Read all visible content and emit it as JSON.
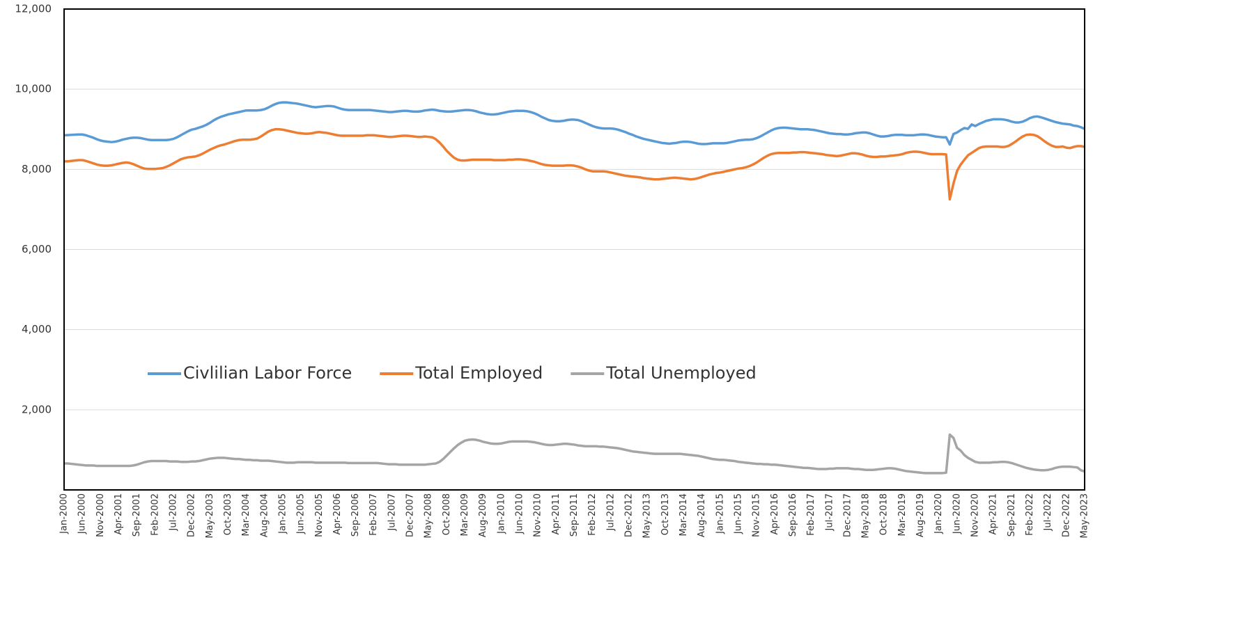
{
  "chart_data": {
    "type": "line",
    "categories": [
      "Jan-2000",
      null,
      null,
      null,
      null,
      "Jun-2000",
      null,
      null,
      null,
      null,
      "Nov-2000",
      null,
      null,
      null,
      null,
      "Apr-2001",
      null,
      null,
      null,
      null,
      "Sep-2001",
      null,
      null,
      null,
      null,
      "Feb-2002",
      null,
      null,
      null,
      null,
      "Jul-2002",
      null,
      null,
      null,
      null,
      "Dec-2002",
      null,
      null,
      null,
      null,
      "May-2003",
      null,
      null,
      null,
      null,
      "Oct-2003",
      null,
      null,
      null,
      null,
      "Mar-2004",
      null,
      null,
      null,
      null,
      "Aug-2004",
      null,
      null,
      null,
      null,
      "Jan-2005",
      null,
      null,
      null,
      null,
      "Jun-2005",
      null,
      null,
      null,
      null,
      "Nov-2005",
      null,
      null,
      null,
      null,
      "Apr-2006",
      null,
      null,
      null,
      null,
      "Sep-2006",
      null,
      null,
      null,
      null,
      "Feb-2007",
      null,
      null,
      null,
      null,
      "Jul-2007",
      null,
      null,
      null,
      null,
      "Dec-2007",
      null,
      null,
      null,
      null,
      "May-2008",
      null,
      null,
      null,
      null,
      "Oct-2008",
      null,
      null,
      null,
      null,
      "Mar-2009",
      null,
      null,
      null,
      null,
      "Aug-2009",
      null,
      null,
      null,
      null,
      "Jan-2010",
      null,
      null,
      null,
      null,
      "Jun-2010",
      null,
      null,
      null,
      null,
      "Nov-2010",
      null,
      null,
      null,
      null,
      "Apr-2011",
      null,
      null,
      null,
      null,
      "Sep-2011",
      null,
      null,
      null,
      null,
      "Feb-2012",
      null,
      null,
      null,
      null,
      "Jul-2012",
      null,
      null,
      null,
      null,
      "Dec-2012",
      null,
      null,
      null,
      null,
      "May-2013",
      null,
      null,
      null,
      null,
      "Oct-2013",
      null,
      null,
      null,
      null,
      "Mar-2014",
      null,
      null,
      null,
      null,
      "Aug-2014",
      null,
      null,
      null,
      null,
      "Jan-2015",
      null,
      null,
      null,
      null,
      "Jun-2015",
      null,
      null,
      null,
      null,
      "Nov-2015",
      null,
      null,
      null,
      null,
      "Apr-2016",
      null,
      null,
      null,
      null,
      "Sep-2016",
      null,
      null,
      null,
      null,
      "Feb-2017",
      null,
      null,
      null,
      null,
      "Jul-2017",
      null,
      null,
      null,
      null,
      "Dec-2017",
      null,
      null,
      null,
      null,
      "May-2018",
      null,
      null,
      null,
      null,
      "Oct-2018",
      null,
      null,
      null,
      null,
      "Mar-2019",
      null,
      null,
      null,
      null,
      "Aug-2019",
      null,
      null,
      null,
      null,
      "Jan-2020",
      null,
      null,
      null,
      null,
      "Jun-2020",
      null,
      null,
      null,
      null,
      "Nov-2020",
      null,
      null,
      null,
      null,
      "Apr-2021",
      null,
      null,
      null,
      null,
      "Sep-2021",
      null,
      null,
      null,
      null,
      "Feb-2022",
      null,
      null,
      null,
      null,
      "Jul-2022",
      null,
      null,
      null,
      null,
      "Dec-2022",
      null,
      null,
      null,
      null,
      "May-2023"
    ],
    "series": [
      {
        "name": "Civlilian Labor Force",
        "color": "#5b9bd5",
        "values": [
          8850,
          8855,
          8860,
          8865,
          8870,
          8870,
          8850,
          8820,
          8790,
          8750,
          8720,
          8700,
          8690,
          8680,
          8690,
          8710,
          8740,
          8760,
          8780,
          8790,
          8790,
          8780,
          8760,
          8740,
          8730,
          8730,
          8730,
          8730,
          8730,
          8740,
          8760,
          8800,
          8850,
          8900,
          8950,
          8990,
          9010,
          9040,
          9070,
          9110,
          9160,
          9220,
          9270,
          9310,
          9340,
          9370,
          9390,
          9410,
          9430,
          9450,
          9470,
          9470,
          9470,
          9470,
          9480,
          9500,
          9540,
          9590,
          9630,
          9660,
          9670,
          9670,
          9660,
          9650,
          9640,
          9620,
          9600,
          9580,
          9560,
          9550,
          9560,
          9570,
          9580,
          9580,
          9570,
          9540,
          9510,
          9490,
          9480,
          9480,
          9480,
          9480,
          9480,
          9480,
          9480,
          9470,
          9460,
          9450,
          9440,
          9430,
          9430,
          9440,
          9450,
          9460,
          9460,
          9450,
          9440,
          9440,
          9450,
          9470,
          9480,
          9490,
          9480,
          9460,
          9450,
          9440,
          9440,
          9450,
          9460,
          9470,
          9480,
          9480,
          9470,
          9450,
          9420,
          9400,
          9380,
          9370,
          9370,
          9380,
          9400,
          9420,
          9440,
          9450,
          9460,
          9460,
          9460,
          9450,
          9430,
          9400,
          9360,
          9310,
          9270,
          9230,
          9210,
          9200,
          9200,
          9210,
          9230,
          9240,
          9240,
          9230,
          9200,
          9160,
          9120,
          9080,
          9050,
          9030,
          9020,
          9020,
          9020,
          9010,
          8990,
          8960,
          8930,
          8890,
          8860,
          8820,
          8790,
          8760,
          8740,
          8720,
          8700,
          8680,
          8660,
          8650,
          8640,
          8650,
          8660,
          8680,
          8690,
          8690,
          8680,
          8660,
          8640,
          8630,
          8630,
          8640,
          8650,
          8650,
          8650,
          8650,
          8660,
          8680,
          8700,
          8720,
          8730,
          8740,
          8740,
          8750,
          8780,
          8820,
          8870,
          8920,
          8970,
          9010,
          9030,
          9040,
          9040,
          9030,
          9020,
          9010,
          9000,
          9000,
          9000,
          8990,
          8980,
          8960,
          8940,
          8920,
          8900,
          8890,
          8880,
          8880,
          8870,
          8870,
          8880,
          8900,
          8910,
          8920,
          8920,
          8900,
          8870,
          8840,
          8820,
          8820,
          8830,
          8850,
          8860,
          8860,
          8860,
          8850,
          8850,
          8850,
          8860,
          8870,
          8870,
          8860,
          8840,
          8820,
          8810,
          8800,
          8800,
          8620,
          8880,
          8920,
          8980,
          9030,
          9010,
          9120,
          9080,
          9130,
          9170,
          9210,
          9230,
          9250,
          9250,
          9250,
          9240,
          9220,
          9190,
          9170,
          9170,
          9190,
          9230,
          9280,
          9310,
          9320,
          9300,
          9270,
          9240,
          9210,
          9180,
          9160,
          9140,
          9130,
          9120,
          9090,
          9080,
          9050,
          9010
        ]
      },
      {
        "name": "Total Employed",
        "color": "#ed7d31",
        "values": [
          8200,
          8200,
          8210,
          8220,
          8230,
          8230,
          8210,
          8180,
          8150,
          8120,
          8100,
          8090,
          8090,
          8100,
          8120,
          8140,
          8160,
          8170,
          8160,
          8130,
          8090,
          8050,
          8020,
          8010,
          8010,
          8010,
          8020,
          8030,
          8060,
          8100,
          8150,
          8200,
          8250,
          8280,
          8300,
          8310,
          8320,
          8350,
          8390,
          8440,
          8490,
          8530,
          8570,
          8600,
          8620,
          8650,
          8680,
          8710,
          8730,
          8740,
          8740,
          8740,
          8750,
          8770,
          8820,
          8880,
          8940,
          8980,
          9000,
          9000,
          8990,
          8970,
          8950,
          8930,
          8910,
          8900,
          8890,
          8890,
          8900,
          8920,
          8930,
          8920,
          8910,
          8890,
          8870,
          8850,
          8840,
          8840,
          8840,
          8840,
          8840,
          8840,
          8840,
          8850,
          8850,
          8850,
          8840,
          8830,
          8820,
          8810,
          8810,
          8820,
          8830,
          8840,
          8840,
          8830,
          8820,
          8810,
          8810,
          8820,
          8810,
          8800,
          8750,
          8670,
          8570,
          8460,
          8370,
          8290,
          8240,
          8220,
          8220,
          8230,
          8240,
          8240,
          8240,
          8240,
          8240,
          8240,
          8230,
          8230,
          8230,
          8230,
          8240,
          8240,
          8250,
          8250,
          8240,
          8230,
          8210,
          8190,
          8160,
          8130,
          8110,
          8100,
          8090,
          8090,
          8090,
          8090,
          8100,
          8100,
          8090,
          8070,
          8040,
          8000,
          7970,
          7950,
          7950,
          7950,
          7950,
          7940,
          7920,
          7900,
          7880,
          7860,
          7840,
          7830,
          7820,
          7810,
          7800,
          7780,
          7770,
          7760,
          7750,
          7750,
          7760,
          7770,
          7780,
          7790,
          7790,
          7780,
          7770,
          7760,
          7750,
          7760,
          7780,
          7810,
          7840,
          7870,
          7890,
          7910,
          7920,
          7940,
          7960,
          7980,
          8000,
          8020,
          8030,
          8050,
          8080,
          8120,
          8170,
          8230,
          8290,
          8340,
          8380,
          8400,
          8410,
          8410,
          8410,
          8410,
          8420,
          8420,
          8430,
          8430,
          8420,
          8410,
          8400,
          8390,
          8380,
          8360,
          8350,
          8340,
          8330,
          8340,
          8360,
          8380,
          8400,
          8400,
          8390,
          8370,
          8340,
          8320,
          8310,
          8310,
          8320,
          8320,
          8330,
          8340,
          8350,
          8360,
          8380,
          8410,
          8430,
          8440,
          8440,
          8430,
          8410,
          8390,
          8380,
          8380,
          8380,
          8380,
          8370,
          7250,
          7640,
          7960,
          8120,
          8240,
          8350,
          8410,
          8470,
          8530,
          8560,
          8570,
          8570,
          8570,
          8570,
          8560,
          8560,
          8580,
          8630,
          8690,
          8760,
          8820,
          8860,
          8870,
          8860,
          8830,
          8770,
          8700,
          8640,
          8590,
          8560,
          8560,
          8570,
          8540,
          8530,
          8560,
          8580,
          8580,
          8560
        ]
      },
      {
        "name": "Total Unemployed",
        "color": "#a5a5a5",
        "values": [
          660,
          660,
          650,
          640,
          630,
          620,
          610,
          610,
          610,
          600,
          600,
          600,
          600,
          600,
          600,
          600,
          600,
          600,
          600,
          610,
          630,
          660,
          690,
          710,
          720,
          720,
          720,
          720,
          720,
          710,
          710,
          710,
          700,
          700,
          700,
          710,
          710,
          720,
          740,
          760,
          780,
          790,
          800,
          800,
          800,
          790,
          780,
          770,
          770,
          760,
          750,
          750,
          740,
          740,
          730,
          730,
          730,
          720,
          710,
          700,
          690,
          680,
          680,
          680,
          690,
          690,
          690,
          690,
          690,
          680,
          680,
          680,
          680,
          680,
          680,
          680,
          680,
          680,
          670,
          670,
          670,
          670,
          670,
          670,
          670,
          670,
          670,
          660,
          650,
          640,
          640,
          640,
          630,
          630,
          630,
          630,
          630,
          630,
          630,
          630,
          640,
          650,
          660,
          700,
          770,
          860,
          950,
          1040,
          1120,
          1180,
          1230,
          1250,
          1260,
          1250,
          1230,
          1200,
          1180,
          1160,
          1150,
          1150,
          1160,
          1180,
          1200,
          1210,
          1210,
          1210,
          1210,
          1210,
          1200,
          1190,
          1170,
          1150,
          1130,
          1120,
          1120,
          1130,
          1140,
          1150,
          1150,
          1140,
          1130,
          1110,
          1100,
          1090,
          1090,
          1090,
          1090,
          1080,
          1080,
          1070,
          1060,
          1050,
          1040,
          1020,
          1000,
          980,
          960,
          950,
          940,
          930,
          920,
          910,
          900,
          900,
          900,
          900,
          900,
          900,
          900,
          900,
          890,
          880,
          870,
          860,
          850,
          830,
          810,
          790,
          770,
          760,
          750,
          750,
          740,
          730,
          720,
          700,
          690,
          680,
          670,
          660,
          650,
          650,
          640,
          640,
          630,
          630,
          620,
          610,
          600,
          590,
          580,
          570,
          560,
          550,
          550,
          540,
          530,
          520,
          520,
          520,
          530,
          530,
          540,
          540,
          540,
          540,
          530,
          520,
          520,
          510,
          500,
          500,
          500,
          510,
          520,
          530,
          540,
          540,
          530,
          510,
          490,
          470,
          460,
          450,
          440,
          430,
          420,
          420,
          420,
          420,
          420,
          420,
          430,
          1380,
          1300,
          1050,
          980,
          870,
          800,
          750,
          700,
          680,
          680,
          680,
          680,
          690,
          690,
          700,
          700,
          690,
          670,
          640,
          610,
          580,
          550,
          530,
          510,
          500,
          490,
          490,
          500,
          520,
          550,
          570,
          580,
          580,
          580,
          570,
          560,
          490,
          460
        ]
      }
    ],
    "ylim": [
      0,
      12000
    ],
    "yticks": [
      {
        "value": 2000,
        "label": "2,000"
      },
      {
        "value": 4000,
        "label": "4,000"
      },
      {
        "value": 6000,
        "label": "6,000"
      },
      {
        "value": 8000,
        "label": "8,000"
      },
      {
        "value": 10000,
        "label": "10,000"
      },
      {
        "value": 12000,
        "label": "12,000"
      }
    ],
    "grid": true
  }
}
